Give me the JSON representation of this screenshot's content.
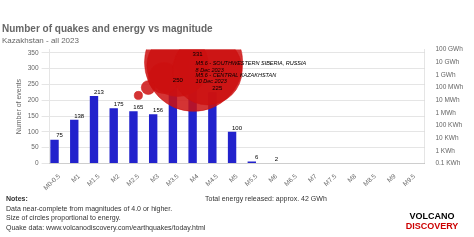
{
  "chart_data": {
    "type": "bar",
    "title": "Number of quakes and energy vs magnitude",
    "subtitle": "Kazakhstan - all 2023",
    "ylabel": "Number of events",
    "categories": [
      "M0-0.5",
      "M1",
      "M1.5",
      "M2",
      "M2.5",
      "M3",
      "M3.5",
      "M4",
      "M4.5",
      "M5",
      "M5.5",
      "M6",
      "M6.5",
      "M7",
      "M7.5",
      "M8",
      "M8.5",
      "M9",
      "M9.5"
    ],
    "values": [
      75,
      138,
      213,
      175,
      165,
      156,
      250,
      331,
      225,
      100,
      6,
      2,
      0,
      0,
      0,
      0,
      0,
      0,
      0
    ],
    "color": "#2222cc",
    "data_labels": true,
    "ylim": [
      0,
      360
    ],
    "yticks": [
      0,
      50,
      100,
      150,
      200,
      250,
      300,
      350
    ],
    "grid": true,
    "y2lim": [
      100,
      100000000000
    ],
    "y2ticks": [
      {
        "value": 100000000000,
        "label": "100 GWh"
      },
      {
        "value": 10000000000,
        "label": "10 GWh"
      },
      {
        "value": 1000000000,
        "label": "1 GWh"
      },
      {
        "value": 100000000,
        "label": "100 MWh"
      },
      {
        "value": 10000000,
        "label": "10 MWh"
      },
      {
        "value": 1000000,
        "label": "1 MWh"
      },
      {
        "value": 100000,
        "label": "100 KWh"
      },
      {
        "value": 10000,
        "label": "10 KWh"
      },
      {
        "value": 1000,
        "label": "1 KWh"
      },
      {
        "value": 100,
        "label": "0.1 KWh"
      }
    ],
    "bubbles": {
      "x": [
        6.0,
        6.8,
        5.3,
        4.5,
        4.0,
        7.5
      ],
      "y": [
        310,
        320,
        270,
        240,
        215,
        295
      ],
      "size": [
        2000,
        5000,
        500,
        100,
        35,
        2500
      ],
      "color": "#cc1111"
    },
    "annotations": [
      {
        "text": "M5.6 - SOUTHWESTERN SIBERIA, RUSSIA\n8 Dec 2023",
        "x": 6.9,
        "y": 305
      },
      {
        "text": "M5.6 - CENTRAL KAZAKHSTAN\n10 Dec 2023",
        "x": 6.9,
        "y": 268
      }
    ],
    "notes": [
      "Notes:",
      "Data near-complete from magnitudes of 4.0 or higher.",
      "Size of circles proportional to energy.",
      "Quake data: www.volcanodiscovery.com/earthquakes/today.html"
    ],
    "total_energy_label": "Total energy released: approx. 42 GWh",
    "logo": {
      "texts": [
        "VOLCANO",
        "DISCOVERY"
      ],
      "colors": [
        "#000000",
        "#cc0000"
      ]
    }
  }
}
